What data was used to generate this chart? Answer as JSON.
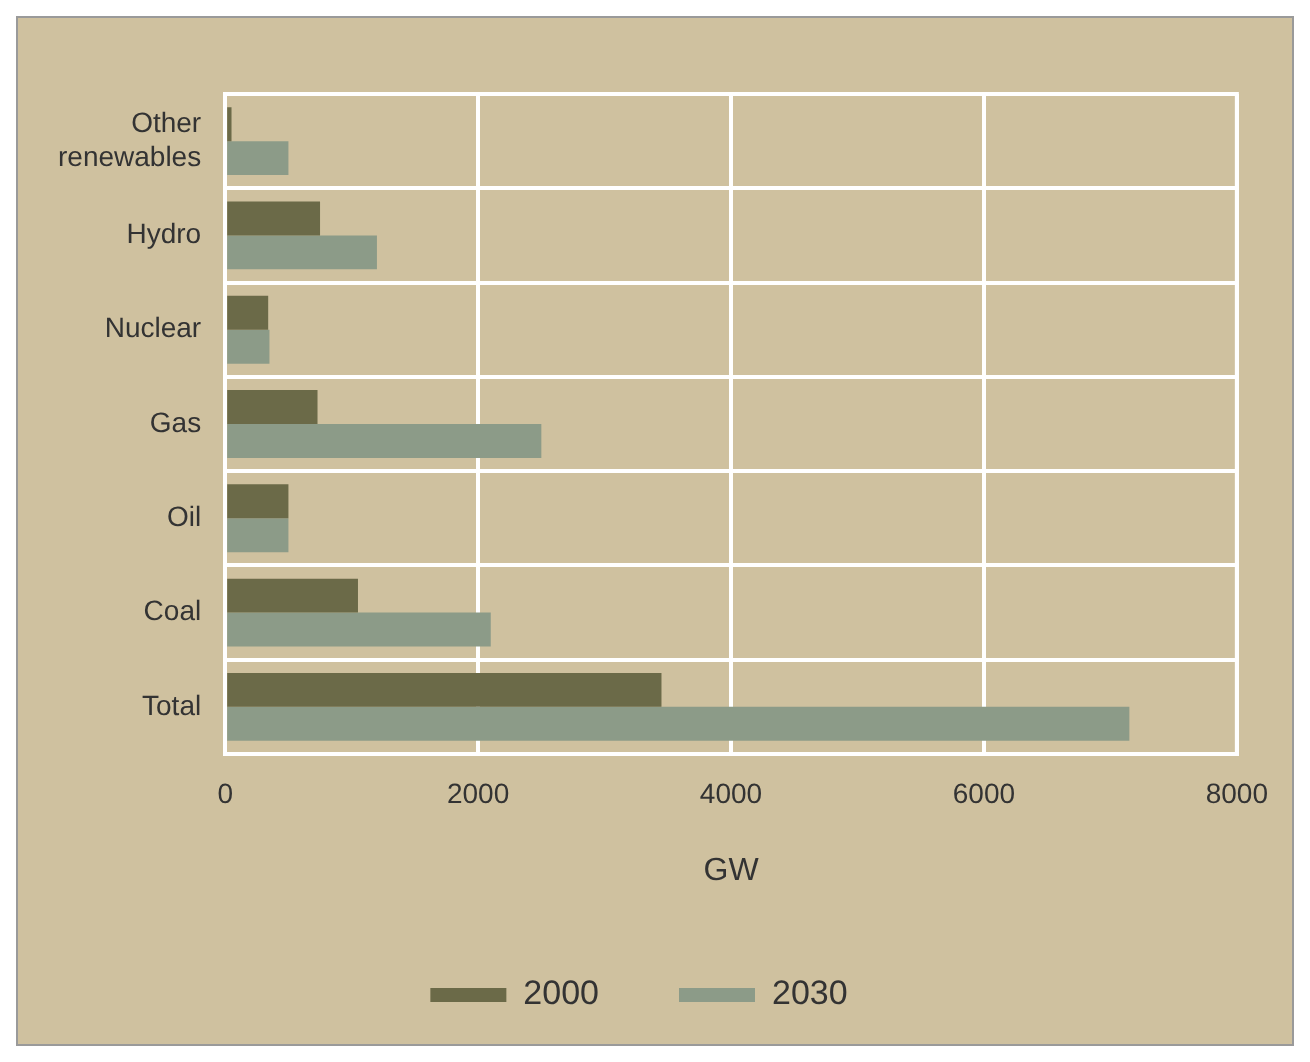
{
  "chart_data": {
    "type": "bar",
    "orientation": "horizontal",
    "xlabel": "GW",
    "categories": [
      "Other renewables",
      "Hydro",
      "Nuclear",
      "Gas",
      "Oil",
      "Coal",
      "Total"
    ],
    "series": [
      {
        "name": "2000",
        "color": "#6b6a48",
        "values": [
          50,
          750,
          340,
          730,
          500,
          1050,
          3450
        ]
      },
      {
        "name": "2030",
        "color": "#8c9b88",
        "values": [
          500,
          1200,
          350,
          2500,
          500,
          2100,
          7150
        ]
      }
    ],
    "xlim": [
      0,
      8000
    ],
    "xticks": [
      0,
      2000,
      4000,
      6000,
      8000
    ],
    "grid": true,
    "legend": "bottom"
  }
}
